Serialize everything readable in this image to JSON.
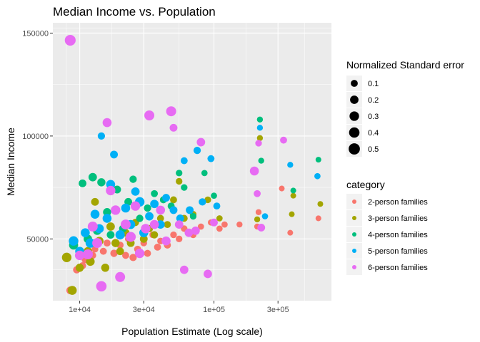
{
  "chart_data": {
    "type": "scatter",
    "title": "Median Income vs. Population",
    "xlabel": "Population Estimate (Log scale)",
    "ylabel": "Median Income",
    "x_scale": "log10",
    "xlim": [
      6310,
      750000
    ],
    "ylim": [
      20000,
      155000
    ],
    "x_ticks": [
      10000,
      30000,
      100000,
      300000
    ],
    "x_tick_labels": [
      "1e+04",
      "3e+04",
      "1e+05",
      "3e+05"
    ],
    "y_ticks": [
      50000,
      100000,
      150000
    ],
    "y_tick_labels": [
      "50000",
      "100000",
      "150000"
    ],
    "grid": true,
    "colors": {
      "panel_bg": "#ebebeb",
      "grid": "#ffffff",
      "2-person families": "#F8766D",
      "3-person families": "#A3A500",
      "4-person families": "#00BF7D",
      "5-person families": "#00B0F6",
      "6-person families": "#E76BF3"
    },
    "size_legend": {
      "title": "Normalized Standard error",
      "entries": [
        {
          "label": "0.1",
          "value": 0.1
        },
        {
          "label": "0.2",
          "value": 0.2
        },
        {
          "label": "0.3",
          "value": 0.3
        },
        {
          "label": "0.4",
          "value": 0.4
        },
        {
          "label": "0.5",
          "value": 0.5
        }
      ],
      "placement": "right"
    },
    "color_legend": {
      "title": "category",
      "entries": [
        "2-person families",
        "3-person families",
        "4-person families",
        "5-person families",
        "6-person families"
      ],
      "placement": "right"
    },
    "series": [
      {
        "name": "2-person families",
        "points": [
          {
            "x": 8500,
            "y": 25000,
            "se": 0.15
          },
          {
            "x": 9500,
            "y": 35000,
            "se": 0.12
          },
          {
            "x": 10500,
            "y": 37000,
            "se": 0.1
          },
          {
            "x": 11000,
            "y": 40000,
            "se": 0.12
          },
          {
            "x": 12500,
            "y": 42000,
            "se": 0.1
          },
          {
            "x": 13000,
            "y": 45000,
            "se": 0.08
          },
          {
            "x": 15000,
            "y": 44000,
            "se": 0.1
          },
          {
            "x": 16000,
            "y": 48000,
            "se": 0.1
          },
          {
            "x": 18000,
            "y": 43000,
            "se": 0.12
          },
          {
            "x": 20000,
            "y": 47000,
            "se": 0.1
          },
          {
            "x": 22000,
            "y": 42000,
            "se": 0.1
          },
          {
            "x": 23000,
            "y": 50000,
            "se": 0.08
          },
          {
            "x": 25000,
            "y": 41000,
            "se": 0.12
          },
          {
            "x": 27000,
            "y": 45000,
            "se": 0.1
          },
          {
            "x": 30000,
            "y": 48000,
            "se": 0.08
          },
          {
            "x": 32000,
            "y": 43000,
            "se": 0.1
          },
          {
            "x": 35000,
            "y": 52000,
            "se": 0.08
          },
          {
            "x": 38000,
            "y": 46000,
            "se": 0.1
          },
          {
            "x": 40000,
            "y": 49000,
            "se": 0.08
          },
          {
            "x": 45000,
            "y": 47000,
            "se": 0.1
          },
          {
            "x": 50000,
            "y": 52000,
            "se": 0.08
          },
          {
            "x": 55000,
            "y": 50000,
            "se": 0.08
          },
          {
            "x": 60000,
            "y": 55000,
            "se": 0.08
          },
          {
            "x": 70000,
            "y": 52000,
            "se": 0.08
          },
          {
            "x": 80000,
            "y": 56000,
            "se": 0.06
          },
          {
            "x": 95000,
            "y": 58000,
            "se": 0.06
          },
          {
            "x": 110000,
            "y": 55000,
            "se": 0.06
          },
          {
            "x": 120000,
            "y": 57000,
            "se": 0.06
          },
          {
            "x": 155000,
            "y": 57000,
            "se": 0.05
          },
          {
            "x": 210000,
            "y": 56000,
            "se": 0.05
          },
          {
            "x": 215000,
            "y": 63000,
            "se": 0.05
          },
          {
            "x": 320000,
            "y": 74500,
            "se": 0.04
          },
          {
            "x": 370000,
            "y": 53000,
            "se": 0.04
          },
          {
            "x": 600000,
            "y": 60000,
            "se": 0.04
          }
        ]
      },
      {
        "name": "3-person families",
        "points": [
          {
            "x": 8000,
            "y": 41000,
            "se": 0.3
          },
          {
            "x": 8800,
            "y": 25000,
            "se": 0.25
          },
          {
            "x": 10000,
            "y": 36000,
            "se": 0.18
          },
          {
            "x": 11500,
            "y": 44000,
            "se": 0.2
          },
          {
            "x": 12000,
            "y": 39000,
            "se": 0.22
          },
          {
            "x": 13000,
            "y": 68000,
            "se": 0.15
          },
          {
            "x": 14000,
            "y": 49000,
            "se": 0.2
          },
          {
            "x": 15500,
            "y": 36000,
            "se": 0.18
          },
          {
            "x": 17000,
            "y": 56000,
            "se": 0.2
          },
          {
            "x": 18500,
            "y": 48000,
            "se": 0.18
          },
          {
            "x": 20000,
            "y": 44000,
            "se": 0.15
          },
          {
            "x": 22000,
            "y": 53000,
            "se": 0.15
          },
          {
            "x": 24000,
            "y": 48000,
            "se": 0.15
          },
          {
            "x": 26000,
            "y": 58000,
            "se": 0.12
          },
          {
            "x": 30000,
            "y": 50000,
            "se": 0.15
          },
          {
            "x": 33000,
            "y": 55000,
            "se": 0.12
          },
          {
            "x": 36000,
            "y": 52000,
            "se": 0.12
          },
          {
            "x": 40000,
            "y": 60000,
            "se": 0.1
          },
          {
            "x": 45000,
            "y": 57000,
            "se": 0.1
          },
          {
            "x": 50000,
            "y": 69000,
            "se": 0.1
          },
          {
            "x": 55000,
            "y": 78000,
            "se": 0.08
          },
          {
            "x": 60000,
            "y": 60000,
            "se": 0.1
          },
          {
            "x": 70000,
            "y": 62000,
            "se": 0.08
          },
          {
            "x": 90000,
            "y": 69000,
            "se": 0.08
          },
          {
            "x": 110000,
            "y": 60000,
            "se": 0.06
          },
          {
            "x": 210000,
            "y": 59500,
            "se": 0.05
          },
          {
            "x": 220000,
            "y": 99000,
            "se": 0.05
          },
          {
            "x": 380000,
            "y": 62000,
            "se": 0.04
          },
          {
            "x": 390000,
            "y": 71000,
            "se": 0.04
          },
          {
            "x": 620000,
            "y": 67000,
            "se": 0.04
          }
        ]
      },
      {
        "name": "4-person families",
        "points": [
          {
            "x": 9000,
            "y": 47000,
            "se": 0.25
          },
          {
            "x": 10500,
            "y": 77000,
            "se": 0.15
          },
          {
            "x": 11500,
            "y": 50000,
            "se": 0.2
          },
          {
            "x": 12500,
            "y": 80000,
            "se": 0.2
          },
          {
            "x": 13500,
            "y": 54000,
            "se": 0.2
          },
          {
            "x": 14500,
            "y": 77500,
            "se": 0.18
          },
          {
            "x": 16000,
            "y": 63000,
            "se": 0.18
          },
          {
            "x": 17000,
            "y": 52000,
            "se": 0.15
          },
          {
            "x": 19000,
            "y": 74000,
            "se": 0.15
          },
          {
            "x": 21000,
            "y": 55000,
            "se": 0.15
          },
          {
            "x": 23000,
            "y": 68000,
            "se": 0.15
          },
          {
            "x": 25000,
            "y": 79000,
            "se": 0.12
          },
          {
            "x": 28000,
            "y": 60000,
            "se": 0.12
          },
          {
            "x": 32000,
            "y": 65000,
            "se": 0.12
          },
          {
            "x": 36000,
            "y": 72000,
            "se": 0.1
          },
          {
            "x": 42000,
            "y": 69000,
            "se": 0.1
          },
          {
            "x": 48000,
            "y": 66000,
            "se": 0.1
          },
          {
            "x": 55000,
            "y": 82000,
            "se": 0.08
          },
          {
            "x": 60000,
            "y": 75000,
            "se": 0.08
          },
          {
            "x": 70000,
            "y": 61000,
            "se": 0.08
          },
          {
            "x": 85000,
            "y": 82000,
            "se": 0.06
          },
          {
            "x": 100000,
            "y": 71000,
            "se": 0.06
          },
          {
            "x": 220000,
            "y": 108000,
            "se": 0.05
          },
          {
            "x": 225000,
            "y": 88000,
            "se": 0.05
          },
          {
            "x": 390000,
            "y": 73500,
            "se": 0.04
          },
          {
            "x": 600000,
            "y": 88500,
            "se": 0.04
          }
        ]
      },
      {
        "name": "5-person families",
        "points": [
          {
            "x": 9000,
            "y": 49000,
            "se": 0.3
          },
          {
            "x": 10000,
            "y": 44000,
            "se": 0.25
          },
          {
            "x": 11000,
            "y": 53000,
            "se": 0.25
          },
          {
            "x": 12000,
            "y": 48000,
            "se": 0.3
          },
          {
            "x": 13000,
            "y": 62000,
            "se": 0.25
          },
          {
            "x": 14000,
            "y": 55000,
            "se": 0.25
          },
          {
            "x": 14500,
            "y": 100000,
            "se": 0.12
          },
          {
            "x": 16000,
            "y": 60000,
            "se": 0.25
          },
          {
            "x": 17000,
            "y": 76500,
            "se": 0.25
          },
          {
            "x": 18000,
            "y": 91000,
            "se": 0.15
          },
          {
            "x": 20000,
            "y": 52000,
            "se": 0.28
          },
          {
            "x": 22000,
            "y": 65000,
            "se": 0.25
          },
          {
            "x": 24000,
            "y": 57000,
            "se": 0.25
          },
          {
            "x": 26000,
            "y": 73000,
            "se": 0.2
          },
          {
            "x": 28000,
            "y": 68000,
            "se": 0.3
          },
          {
            "x": 30000,
            "y": 53000,
            "se": 0.25
          },
          {
            "x": 33000,
            "y": 61000,
            "se": 0.2
          },
          {
            "x": 36000,
            "y": 67000,
            "se": 0.2
          },
          {
            "x": 40000,
            "y": 57000,
            "se": 0.2
          },
          {
            "x": 44000,
            "y": 70000,
            "se": 0.15
          },
          {
            "x": 50000,
            "y": 64000,
            "se": 0.15
          },
          {
            "x": 56000,
            "y": 60000,
            "se": 0.15
          },
          {
            "x": 60000,
            "y": 88000,
            "se": 0.1
          },
          {
            "x": 66000,
            "y": 64000,
            "se": 0.15
          },
          {
            "x": 75000,
            "y": 93000,
            "se": 0.12
          },
          {
            "x": 82000,
            "y": 68000,
            "se": 0.12
          },
          {
            "x": 95000,
            "y": 89000,
            "se": 0.1
          },
          {
            "x": 105000,
            "y": 66000,
            "se": 0.1
          },
          {
            "x": 220000,
            "y": 104000,
            "se": 0.05
          },
          {
            "x": 240000,
            "y": 61000,
            "se": 0.06
          },
          {
            "x": 370000,
            "y": 86000,
            "se": 0.05
          },
          {
            "x": 590000,
            "y": 80500,
            "se": 0.06
          }
        ]
      },
      {
        "name": "6-person families",
        "points": [
          {
            "x": 8500,
            "y": 146500,
            "se": 0.45
          },
          {
            "x": 10000,
            "y": 42000,
            "se": 0.3
          },
          {
            "x": 11500,
            "y": 42500,
            "se": 0.35
          },
          {
            "x": 12500,
            "y": 56000,
            "se": 0.35
          },
          {
            "x": 13500,
            "y": 48000,
            "se": 0.35
          },
          {
            "x": 14500,
            "y": 27000,
            "se": 0.4
          },
          {
            "x": 16000,
            "y": 106500,
            "se": 0.25
          },
          {
            "x": 17000,
            "y": 73500,
            "se": 0.3
          },
          {
            "x": 18500,
            "y": 64000,
            "se": 0.3
          },
          {
            "x": 20000,
            "y": 31500,
            "se": 0.35
          },
          {
            "x": 22000,
            "y": 57000,
            "se": 0.35
          },
          {
            "x": 24000,
            "y": 51000,
            "se": 0.35
          },
          {
            "x": 26000,
            "y": 66000,
            "se": 0.3
          },
          {
            "x": 28000,
            "y": 43000,
            "se": 0.3
          },
          {
            "x": 31000,
            "y": 55000,
            "se": 0.3
          },
          {
            "x": 33000,
            "y": 110000,
            "se": 0.35
          },
          {
            "x": 36000,
            "y": 57000,
            "se": 0.25
          },
          {
            "x": 40000,
            "y": 64000,
            "se": 0.25
          },
          {
            "x": 44000,
            "y": 49000,
            "se": 0.25
          },
          {
            "x": 48000,
            "y": 112000,
            "se": 0.35
          },
          {
            "x": 50000,
            "y": 104000,
            "se": 0.15
          },
          {
            "x": 55000,
            "y": 57000,
            "se": 0.2
          },
          {
            "x": 60000,
            "y": 35000,
            "se": 0.2
          },
          {
            "x": 65000,
            "y": 53000,
            "se": 0.2
          },
          {
            "x": 73000,
            "y": 54000,
            "se": 0.2
          },
          {
            "x": 80000,
            "y": 97000,
            "se": 0.2
          },
          {
            "x": 90000,
            "y": 33000,
            "se": 0.2
          },
          {
            "x": 100000,
            "y": 58000,
            "se": 0.15
          },
          {
            "x": 200000,
            "y": 83000,
            "se": 0.25
          },
          {
            "x": 210000,
            "y": 72000,
            "se": 0.1
          },
          {
            "x": 215000,
            "y": 96500,
            "se": 0.08
          },
          {
            "x": 225000,
            "y": 55500,
            "se": 0.15
          },
          {
            "x": 330000,
            "y": 98000,
            "se": 0.1
          }
        ]
      }
    ]
  }
}
